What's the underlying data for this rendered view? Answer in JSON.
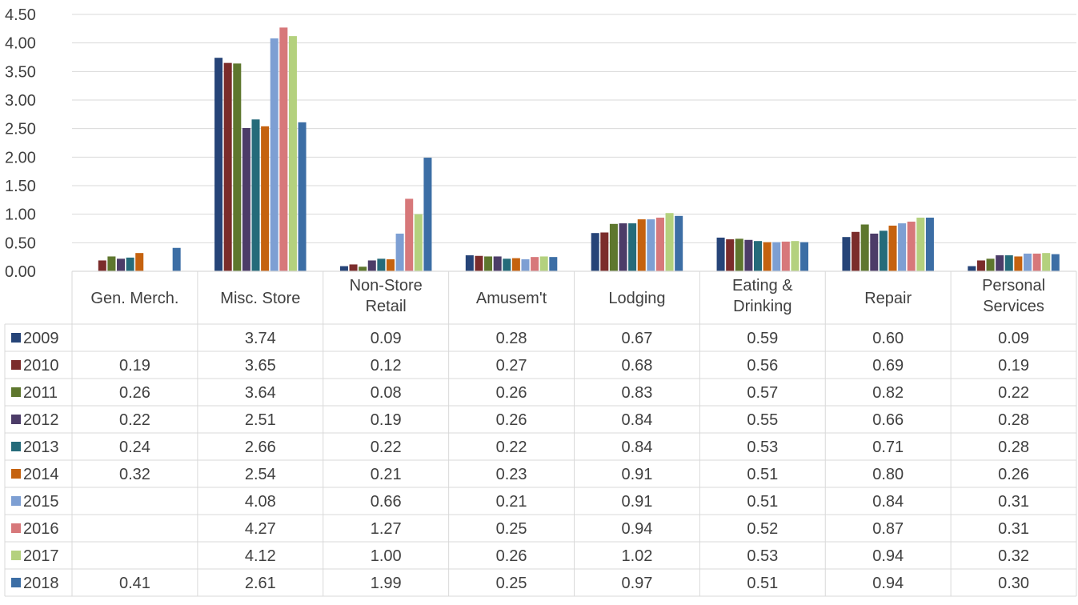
{
  "chart_data": {
    "type": "bar",
    "title": "",
    "xlabel": "",
    "ylabel": "",
    "ylim": [
      0,
      4.5
    ],
    "yticks": [
      "0.00",
      "0.50",
      "1.00",
      "1.50",
      "2.00",
      "2.50",
      "3.00",
      "3.50",
      "4.00",
      "4.50"
    ],
    "grid": true,
    "legend_placement": "data-table-left",
    "categories": [
      [
        "Gen. Merch."
      ],
      [
        "Misc. Store"
      ],
      [
        "Non-Store",
        "Retail"
      ],
      [
        "Amusem't"
      ],
      [
        "Lodging"
      ],
      [
        "Eating &",
        "Drinking"
      ],
      [
        "Repair"
      ],
      [
        "Personal",
        "Services"
      ]
    ],
    "series": [
      {
        "name": "2009",
        "color": "#264478",
        "values": [
          null,
          3.74,
          0.09,
          0.28,
          0.67,
          0.59,
          0.6,
          0.09
        ]
      },
      {
        "name": "2010",
        "color": "#7B2C2B",
        "values": [
          0.19,
          3.65,
          0.12,
          0.27,
          0.68,
          0.56,
          0.69,
          0.19
        ]
      },
      {
        "name": "2011",
        "color": "#5E772E",
        "values": [
          0.26,
          3.64,
          0.08,
          0.26,
          0.83,
          0.57,
          0.82,
          0.22
        ]
      },
      {
        "name": "2012",
        "color": "#4C3C68",
        "values": [
          0.22,
          2.51,
          0.19,
          0.26,
          0.84,
          0.55,
          0.66,
          0.28
        ]
      },
      {
        "name": "2013",
        "color": "#256B7A",
        "values": [
          0.24,
          2.66,
          0.22,
          0.22,
          0.84,
          0.53,
          0.71,
          0.28
        ]
      },
      {
        "name": "2014",
        "color": "#C5620F",
        "values": [
          0.32,
          2.54,
          0.21,
          0.23,
          0.91,
          0.51,
          0.8,
          0.26
        ]
      },
      {
        "name": "2015",
        "color": "#7D9FD3",
        "values": [
          null,
          4.08,
          0.66,
          0.21,
          0.91,
          0.51,
          0.84,
          0.31
        ]
      },
      {
        "name": "2016",
        "color": "#D7787A",
        "values": [
          null,
          4.27,
          1.27,
          0.25,
          0.94,
          0.52,
          0.87,
          0.31
        ]
      },
      {
        "name": "2017",
        "color": "#B4D17E",
        "values": [
          null,
          4.12,
          1.0,
          0.26,
          1.02,
          0.53,
          0.94,
          0.32
        ]
      },
      {
        "name": "2018",
        "color": "#3C6EA5",
        "values": [
          0.41,
          2.61,
          1.99,
          0.25,
          0.97,
          0.51,
          0.94,
          0.3
        ]
      }
    ]
  }
}
